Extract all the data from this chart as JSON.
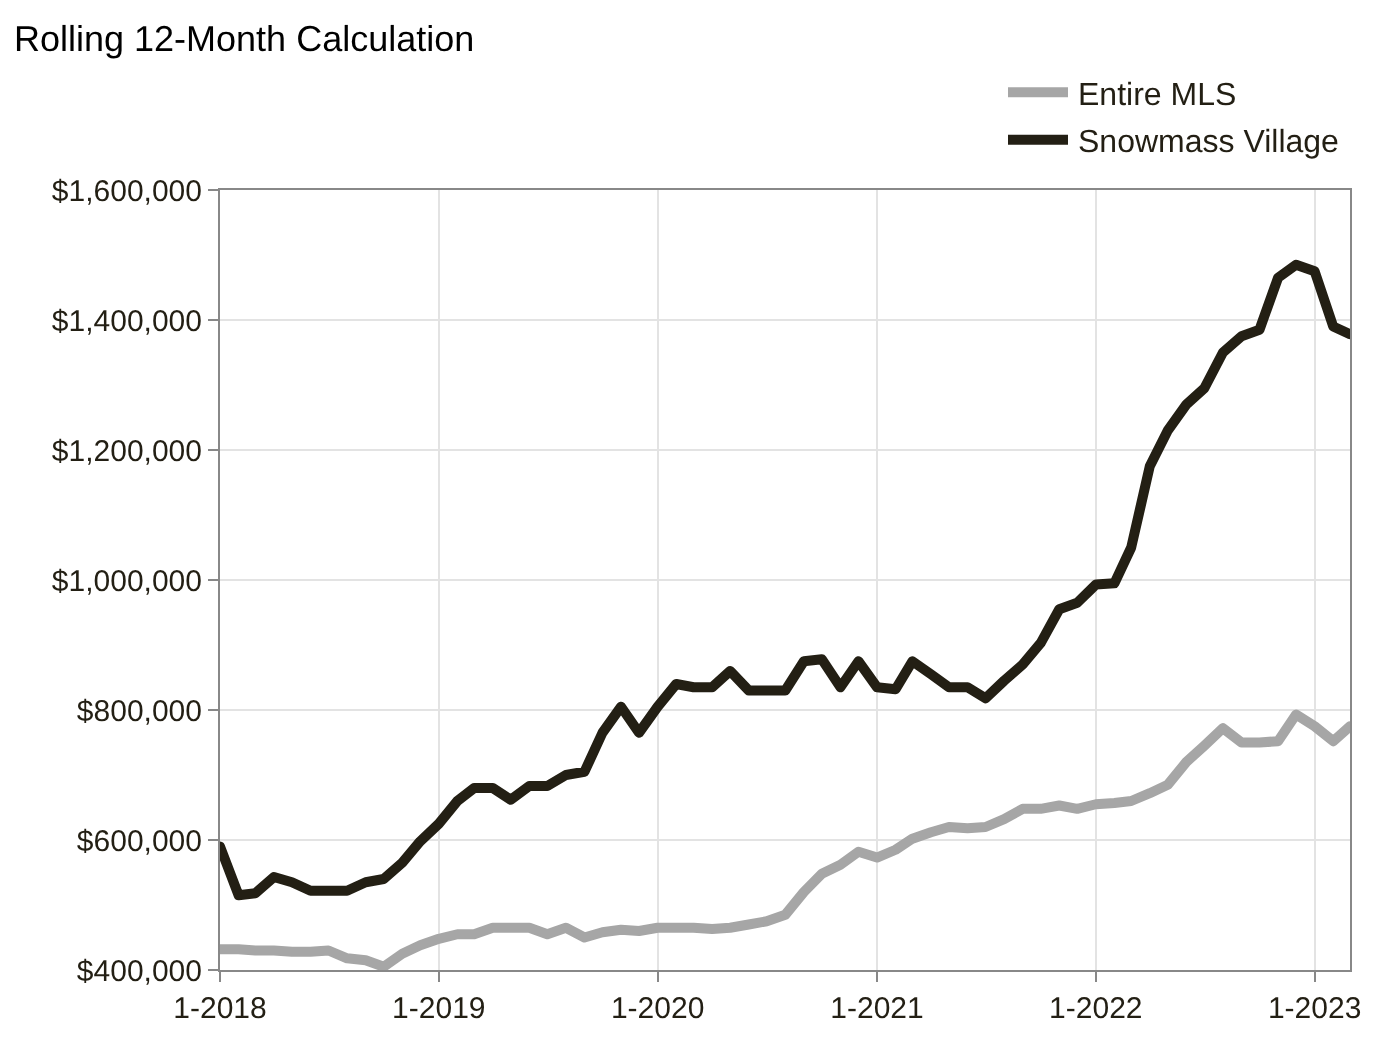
{
  "chart_data": {
    "type": "line",
    "title": "Rolling 12-Month Calculation",
    "x": [
      "2018-01",
      "2018-02",
      "2018-03",
      "2018-04",
      "2018-05",
      "2018-06",
      "2018-07",
      "2018-08",
      "2018-09",
      "2018-10",
      "2018-11",
      "2018-12",
      "2019-01",
      "2019-02",
      "2019-03",
      "2019-04",
      "2019-05",
      "2019-06",
      "2019-07",
      "2019-08",
      "2019-09",
      "2019-10",
      "2019-11",
      "2019-12",
      "2020-01",
      "2020-02",
      "2020-03",
      "2020-04",
      "2020-05",
      "2020-06",
      "2020-07",
      "2020-08",
      "2020-09",
      "2020-10",
      "2020-11",
      "2020-12",
      "2021-01",
      "2021-02",
      "2021-03",
      "2021-04",
      "2021-05",
      "2021-06",
      "2021-07",
      "2021-08",
      "2021-09",
      "2021-10",
      "2021-11",
      "2021-12",
      "2022-01",
      "2022-02",
      "2022-03",
      "2022-04",
      "2022-05",
      "2022-06",
      "2022-07",
      "2022-08",
      "2022-09",
      "2022-10",
      "2022-11",
      "2022-12",
      "2023-01",
      "2023-02",
      "2023-03"
    ],
    "series": [
      {
        "name": "Entire MLS",
        "color": "#a6a6a6",
        "values": [
          432000,
          432000,
          430000,
          430000,
          428000,
          428000,
          430000,
          418000,
          415000,
          405000,
          425000,
          438000,
          448000,
          455000,
          455000,
          465000,
          465000,
          465000,
          455000,
          465000,
          450000,
          458000,
          462000,
          460000,
          465000,
          465000,
          465000,
          463000,
          465000,
          470000,
          475000,
          485000,
          520000,
          548000,
          562000,
          582000,
          573000,
          585000,
          602000,
          612000,
          620000,
          618000,
          620000,
          632000,
          648000,
          648000,
          653000,
          648000,
          655000,
          657000,
          660000,
          672000,
          685000,
          720000,
          745000,
          772000,
          750000,
          750000,
          752000,
          793000,
          775000,
          752000,
          775000
        ]
      },
      {
        "name": "Snowmass Village",
        "color": "#231f14",
        "values": [
          590000,
          515000,
          518000,
          543000,
          535000,
          522000,
          522000,
          522000,
          535000,
          540000,
          565000,
          598000,
          625000,
          660000,
          680000,
          680000,
          662000,
          683000,
          683000,
          700000,
          705000,
          765000,
          805000,
          765000,
          805000,
          840000,
          835000,
          835000,
          860000,
          830000,
          830000,
          830000,
          875000,
          878000,
          835000,
          875000,
          835000,
          832000,
          875000,
          855000,
          835000,
          835000,
          818000,
          845000,
          870000,
          903000,
          955000,
          965000,
          993000,
          995000,
          1050000,
          1175000,
          1230000,
          1270000,
          1295000,
          1350000,
          1375000,
          1385000,
          1465000,
          1485000,
          1475000,
          1390000,
          1378000
        ]
      }
    ],
    "xlim": [
      "2018-01",
      "2023-03"
    ],
    "xticks": [
      {
        "value": "2018-01",
        "label": "1-2018"
      },
      {
        "value": "2019-01",
        "label": "1-2019"
      },
      {
        "value": "2020-01",
        "label": "1-2020"
      },
      {
        "value": "2021-01",
        "label": "1-2021"
      },
      {
        "value": "2022-01",
        "label": "1-2022"
      },
      {
        "value": "2023-01",
        "label": "1-2023"
      }
    ],
    "ylim": [
      400000,
      1600000
    ],
    "yticks": [
      {
        "value": 400000,
        "label": "$400,000"
      },
      {
        "value": 600000,
        "label": "$600,000"
      },
      {
        "value": 800000,
        "label": "$800,000"
      },
      {
        "value": 1000000,
        "label": "$1,000,000"
      },
      {
        "value": 1200000,
        "label": "$1,200,000"
      },
      {
        "value": 1400000,
        "label": "$1,400,000"
      },
      {
        "value": 1600000,
        "label": "$1,600,000"
      }
    ],
    "grid": true,
    "legend": "top right",
    "marker": "none",
    "line_style": "solid"
  }
}
